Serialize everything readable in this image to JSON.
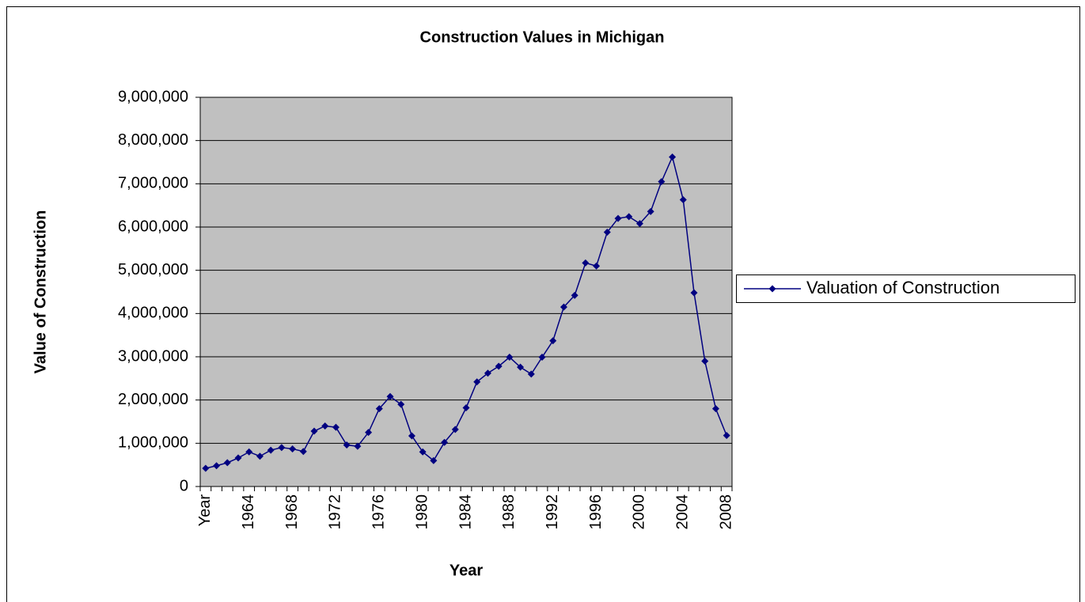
{
  "chart_data": {
    "type": "line",
    "title": "Construction Values in Michigan",
    "x_label": "Year",
    "y_label": "Value of Construction",
    "categories": [
      "Year",
      null,
      null,
      null,
      "1964",
      null,
      null,
      null,
      "1968",
      null,
      null,
      null,
      "1972",
      null,
      null,
      null,
      "1976",
      null,
      null,
      null,
      "1980",
      null,
      null,
      null,
      "1984",
      null,
      null,
      null,
      "1988",
      null,
      null,
      null,
      "1992",
      null,
      null,
      null,
      "1996",
      null,
      null,
      null,
      "2000",
      null,
      null,
      null,
      "2004",
      null,
      null,
      null,
      "2008"
    ],
    "series": [
      {
        "name": "Valuation of Construction",
        "color": "#000080",
        "values": [
          420000,
          480000,
          550000,
          660000,
          800000,
          700000,
          840000,
          900000,
          870000,
          810000,
          1280000,
          1400000,
          1370000,
          960000,
          930000,
          1250000,
          1800000,
          2080000,
          1900000,
          1170000,
          800000,
          600000,
          1020000,
          1320000,
          1820000,
          2420000,
          2620000,
          2780000,
          2990000,
          2760000,
          2600000,
          2990000,
          3370000,
          4150000,
          4420000,
          5170000,
          5100000,
          5880000,
          6200000,
          6240000,
          6080000,
          6360000,
          7050000,
          7620000,
          6630000,
          4480000,
          2900000,
          1800000,
          1180000
        ]
      }
    ],
    "ylim": [
      0,
      9000000
    ],
    "yticks": [
      0,
      {
        "value": 1000000,
        "label": "1,000,000"
      },
      {
        "value": 2000000,
        "label": "2,000,000"
      },
      {
        "value": 3000000,
        "label": "3,000,000"
      },
      {
        "value": 4000000,
        "label": "4,000,000"
      },
      {
        "value": 5000000,
        "label": "5,000,000"
      },
      {
        "value": 6000000,
        "label": "6,000,000"
      },
      {
        "value": 7000000,
        "label": "7,000,000"
      },
      {
        "value": 8000000,
        "label": "8,000,000"
      },
      {
        "value": 9000000,
        "label": "9,000,000"
      }
    ],
    "grid": true,
    "plot_background": "#c0c0c0",
    "legend": "right"
  }
}
